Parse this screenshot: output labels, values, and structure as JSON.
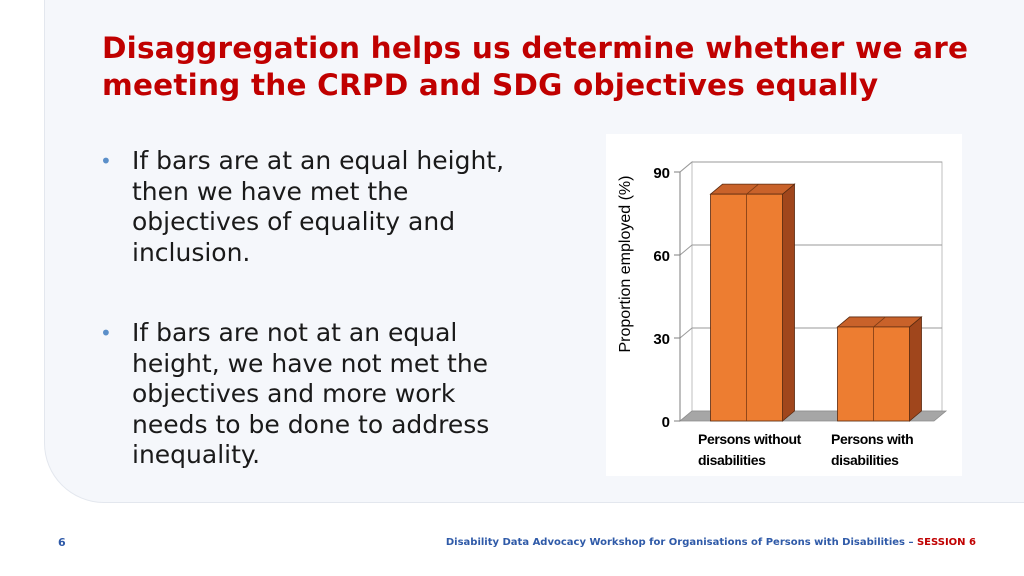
{
  "title": "Disaggregation helps us determine whether we are meeting the CRPD and SDG objectives equally",
  "bullets": [
    "If bars are at an equal height, then we have met the objectives of equality and inclusion.",
    "If bars are not at an equal height, we have not met the objectives and more work needs to be done to address inequality."
  ],
  "chart_data": {
    "type": "bar",
    "categories": [
      "Persons without disabilities",
      "Persons with disabilities"
    ],
    "category_lines": [
      [
        "Persons without",
        "disabilities"
      ],
      [
        "Persons with",
        "disabilities"
      ]
    ],
    "values": [
      82,
      34
    ],
    "ylabel": "Proportion employed (%)",
    "yticks": [
      0,
      30,
      60,
      90
    ],
    "ylim": [
      0,
      90
    ],
    "grid": true,
    "legend": "none",
    "bar_color": "#ed7d31",
    "bar_side_color": "#a0461c",
    "bar_top_color": "#c9622a",
    "floor_color": "#a6a6a6"
  },
  "footer": {
    "page_number": "6",
    "text": "Disability Data Advocacy Workshop for Organisations of Persons with Disabilities – ",
    "session": "SESSION 6"
  }
}
